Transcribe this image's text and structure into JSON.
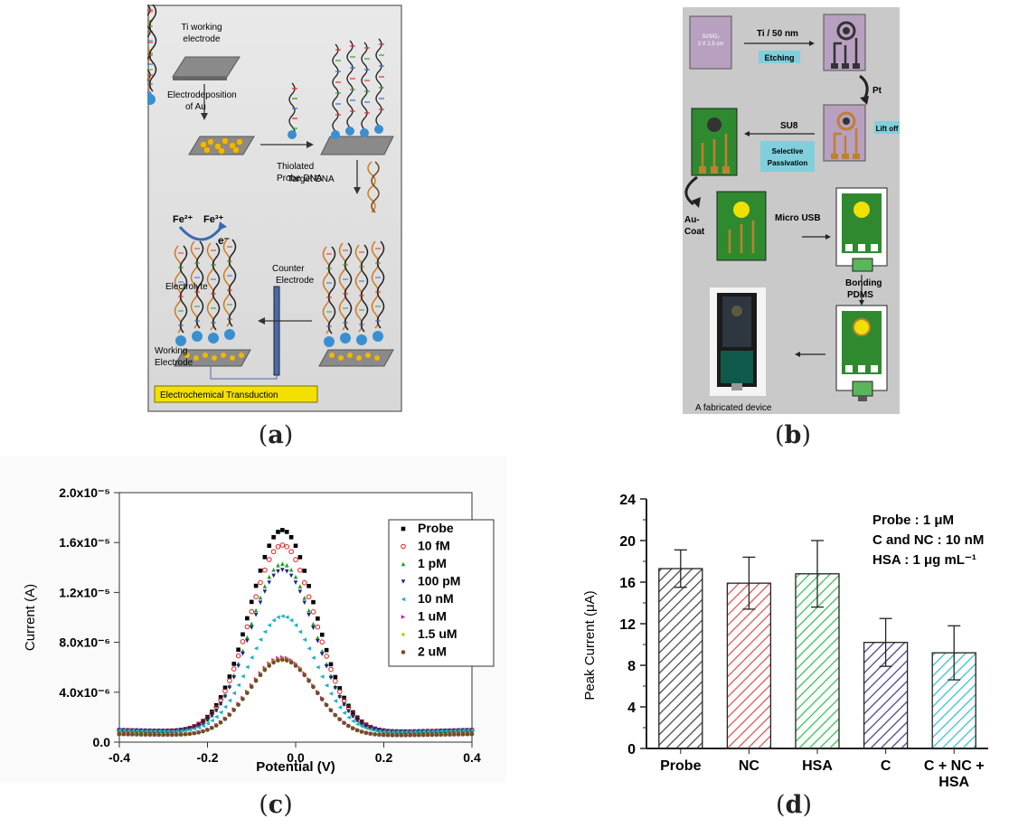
{
  "captions": {
    "a": "a",
    "b": "b",
    "c": "c",
    "d": "d"
  },
  "panel_a": {
    "ti_working_electrode": "Ti working\nelectrode",
    "electrodeposition": "Electrodeposition\nof Au",
    "thiolated_probe": "Thiolated\nProbe DNA",
    "target_dna": "Target DNA",
    "fe2": "Fe²⁺",
    "fe3": "Fe³⁺",
    "electron": "e⁻",
    "electrolyte": "Electrolyte",
    "counter_electrode": "Counter\nElectrode",
    "working_electrode": "Working\nElectrode",
    "transduction": "Electrochemical Transduction"
  },
  "panel_b": {
    "substrate": "Si/SiO₂\n3 X 1.5 cm",
    "ti_label": "Ti / 50 nm",
    "etching": "Etching",
    "pt": "Pt",
    "lift_off": "Lift off",
    "su8": "SU8",
    "selective_passivation": "Selective\nPassivation",
    "au_coat": "Au-\nCoat",
    "micro_usb": "Micro USB",
    "bonding": "Bonding\nPDMS",
    "device": "A fabricated device"
  },
  "colors": {
    "bar_probe": "#444444",
    "bar_nc": "#e05050",
    "bar_hsa": "#30c050",
    "bar_c": "#404090",
    "bar_cnchsa": "#30c0d0",
    "pcb_green": "#2f8a2f",
    "gold": "#e8b200",
    "teal_label": "#7fd0dc"
  },
  "chart_data": [
    {
      "type": "line",
      "xlabel": "Potential (V)",
      "ylabel": "Current (A)",
      "xlim": [
        -0.4,
        0.4
      ],
      "ylim": [
        0,
        2e-05
      ],
      "xticks": [
        "-0.4",
        "-0.2",
        "0.0",
        "0.2",
        "0.4"
      ],
      "yticks": [
        "0.0",
        "4.0x10⁻⁶",
        "8.0x10⁻⁶",
        "1.2x10⁻⁵",
        "1.6x10⁻⁵",
        "2.0x10⁻⁵"
      ],
      "legend_position": "top-right",
      "peak_x": -0.03,
      "series": [
        {
          "name": "Probe",
          "peak": 1.7e-05,
          "baseline": 6e-07,
          "color": "#000000",
          "marker": "square"
        },
        {
          "name": "10 fM",
          "peak": 1.58e-05,
          "baseline": 6e-07,
          "color": "#e02020",
          "marker": "circle"
        },
        {
          "name": "1 pM",
          "peak": 1.43e-05,
          "baseline": 6e-07,
          "color": "#20a020",
          "marker": "triangle-up"
        },
        {
          "name": "100 pM",
          "peak": 1.38e-05,
          "baseline": 6e-07,
          "color": "#202090",
          "marker": "triangle-down"
        },
        {
          "name": "10 nM",
          "peak": 1.01e-05,
          "baseline": 6e-07,
          "color": "#20b0c0",
          "marker": "triangle-left"
        },
        {
          "name": "1 uM",
          "peak": 6.8e-06,
          "baseline": 4e-07,
          "color": "#c020c0",
          "marker": "triangle-right"
        },
        {
          "name": "1.5 uM",
          "peak": 6.7e-06,
          "baseline": 4e-07,
          "color": "#d0c000",
          "marker": "diamond"
        },
        {
          "name": "2 uM",
          "peak": 6.6e-06,
          "baseline": 4e-07,
          "color": "#705020",
          "marker": "hex"
        }
      ]
    },
    {
      "type": "bar",
      "ylabel": "Peak Current (μA)",
      "ylim": [
        0,
        24
      ],
      "yticks": [
        "0",
        "4",
        "8",
        "12",
        "16",
        "20",
        "24"
      ],
      "categories": [
        "Probe",
        "NC",
        "HSA",
        "C",
        "C + NC +\nHSA"
      ],
      "values": [
        17.3,
        15.9,
        16.8,
        10.2,
        9.2
      ],
      "errors": [
        1.8,
        2.5,
        3.2,
        2.3,
        2.6
      ],
      "annotations": [
        "Probe : 1 μM",
        "C and NC : 10 nM",
        "HSA : 1 μg mL⁻¹"
      ]
    }
  ]
}
